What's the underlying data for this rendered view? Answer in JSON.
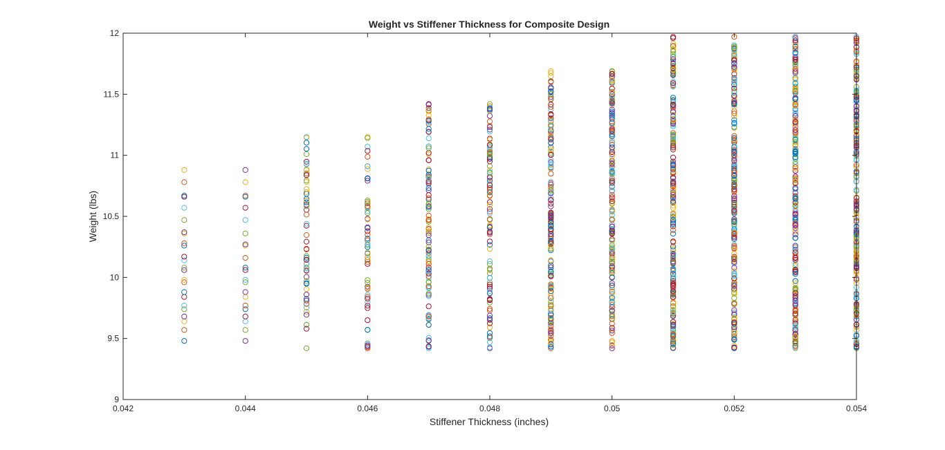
{
  "chart_data": {
    "type": "scatter",
    "title": "Weight vs Stiffener Thickness for Composite Design",
    "xlabel": "Stiffener Thickness (inches)",
    "ylabel": "Weight (lbs)",
    "xlim": [
      0.042,
      0.054
    ],
    "ylim": [
      9,
      12
    ],
    "xticks": [
      "0.042",
      "0.044",
      "0.046",
      "0.048",
      "0.05",
      "0.052",
      "0.054"
    ],
    "yticks": [
      "9",
      "9.5",
      "10",
      "10.5",
      "11",
      "11.5",
      "12"
    ],
    "grid": false,
    "marker": "circle-open",
    "color_order": [
      "#0072BD",
      "#D95319",
      "#EDB120",
      "#7E2F8E",
      "#77AC30",
      "#4DBEEE",
      "#A2142F"
    ],
    "columns": [
      {
        "x": 0.043,
        "y": [
          9.48,
          9.57,
          9.64,
          9.68,
          9.74,
          9.77,
          9.84,
          9.88,
          9.96,
          9.98,
          10.06,
          10.08,
          10.14,
          10.17,
          10.26,
          10.28,
          10.36,
          10.37,
          10.47,
          10.57,
          10.66,
          10.67,
          10.78,
          10.88
        ]
      },
      {
        "x": 0.044,
        "y": [
          9.48,
          9.57,
          9.64,
          9.68,
          9.74,
          9.77,
          9.84,
          9.88,
          9.96,
          9.98,
          10.06,
          10.08,
          10.16,
          10.26,
          10.27,
          10.36,
          10.47,
          10.57,
          10.66,
          10.67,
          10.78,
          10.88
        ]
      },
      {
        "x": 0.045,
        "y_min": 9.42,
        "y_max": 11.15,
        "count": 60
      },
      {
        "x": 0.046,
        "y_min": 9.42,
        "y_max": 11.15,
        "count": 60
      },
      {
        "x": 0.047,
        "y_min": 9.42,
        "y_max": 11.42,
        "count": 110
      },
      {
        "x": 0.048,
        "y_min": 9.42,
        "y_max": 11.42,
        "count": 110
      },
      {
        "x": 0.049,
        "y_min": 9.42,
        "y_max": 11.69,
        "count": 170
      },
      {
        "x": 0.05,
        "y_min": 9.42,
        "y_max": 11.69,
        "count": 170
      },
      {
        "x": 0.051,
        "y_min": 9.42,
        "y_max": 11.97,
        "count": 240
      },
      {
        "x": 0.052,
        "y_min": 9.42,
        "y_max": 11.97,
        "count": 240
      },
      {
        "x": 0.053,
        "y_min": 9.42,
        "y_max": 11.97,
        "count": 240
      },
      {
        "x": 0.054,
        "y_min": 9.42,
        "y_max": 11.97,
        "count": 240
      }
    ]
  }
}
